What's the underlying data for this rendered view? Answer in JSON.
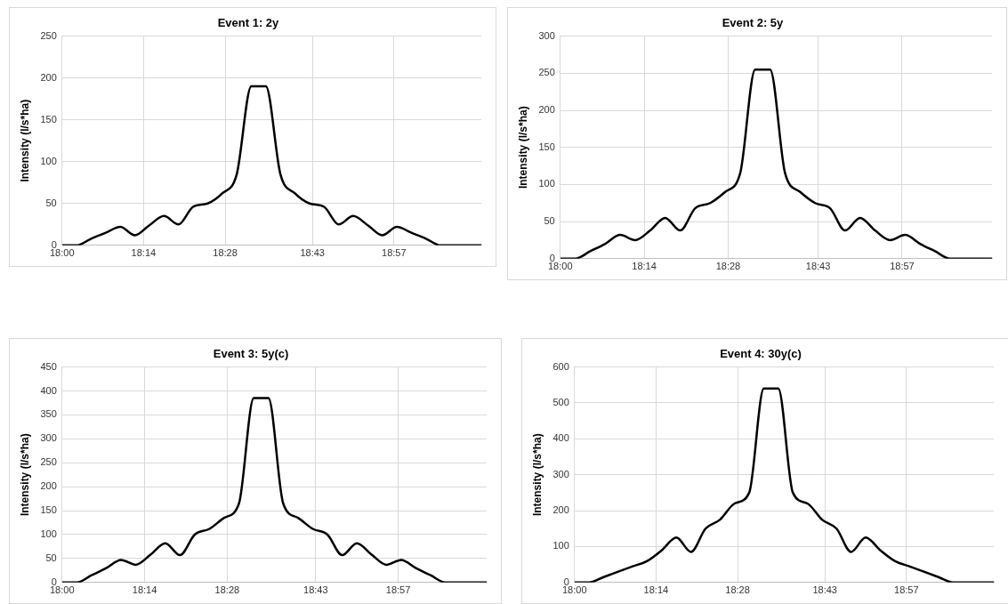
{
  "chart_data": [
    {
      "type": "line",
      "title": "Event 1: 2y",
      "ylabel": "Intensity (l/s*ha)",
      "grid": true,
      "legend": false,
      "marker": "none",
      "line_style": "solid",
      "xlim": [
        18,
        19.2
      ],
      "xticks": [
        {
          "value": 18,
          "label": "18:00"
        },
        {
          "value": 18.2333,
          "label": "18:14"
        },
        {
          "value": 18.4667,
          "label": "18:28"
        },
        {
          "value": 18.7167,
          "label": "18:43"
        },
        {
          "value": 18.95,
          "label": "18:57"
        }
      ],
      "ylim": [
        0,
        250
      ],
      "yticks": [
        0,
        50,
        100,
        150,
        200,
        250
      ],
      "series": [
        {
          "color": "#000000",
          "x": [
            18,
            18.0417,
            18.0833,
            18.125,
            18.1667,
            18.2083,
            18.25,
            18.2917,
            18.3333,
            18.375,
            18.4167,
            18.4583,
            18.5,
            18.5417,
            18.5833,
            18.625,
            18.6667,
            18.7083,
            18.75,
            18.7917,
            18.8333,
            18.875,
            18.9167,
            18.9583,
            19,
            19.0417,
            19.0833,
            19.125,
            19.1667,
            19.2
          ],
          "values": [
            0,
            0,
            8,
            15,
            22,
            12,
            24,
            35,
            25,
            46,
            50,
            62,
            85,
            190,
            190,
            85,
            62,
            50,
            46,
            25,
            35,
            24,
            12,
            22,
            15,
            8,
            0,
            0,
            0,
            0
          ]
        }
      ]
    },
    {
      "type": "line",
      "title": "Event 2: 5y",
      "ylabel": "Intensity (l/s*ha)",
      "grid": true,
      "legend": false,
      "marker": "none",
      "line_style": "solid",
      "xlim": [
        18,
        19.2
      ],
      "xticks": [
        {
          "value": 18,
          "label": "18:00"
        },
        {
          "value": 18.2333,
          "label": "18:14"
        },
        {
          "value": 18.4667,
          "label": "18:28"
        },
        {
          "value": 18.7167,
          "label": "18:43"
        },
        {
          "value": 18.95,
          "label": "18:57"
        }
      ],
      "ylim": [
        0,
        300
      ],
      "yticks": [
        0,
        50,
        100,
        150,
        200,
        250,
        300
      ],
      "series": [
        {
          "color": "#000000",
          "x": [
            18,
            18.0417,
            18.0833,
            18.125,
            18.1667,
            18.2083,
            18.25,
            18.2917,
            18.3333,
            18.375,
            18.4167,
            18.4583,
            18.5,
            18.5417,
            18.5833,
            18.625,
            18.6667,
            18.7083,
            18.75,
            18.7917,
            18.8333,
            18.875,
            18.9167,
            18.9583,
            19,
            19.0417,
            19.0833,
            19.125,
            19.1667,
            19.2
          ],
          "values": [
            0,
            0,
            10,
            20,
            32,
            25,
            38,
            55,
            38,
            68,
            75,
            90,
            115,
            255,
            255,
            115,
            90,
            75,
            68,
            38,
            55,
            38,
            25,
            32,
            20,
            10,
            0,
            0,
            0,
            0
          ]
        }
      ]
    },
    {
      "type": "line",
      "title": "Event 3: 5y(c)",
      "ylabel": "Intensity (l/s*ha)",
      "grid": true,
      "legend": false,
      "marker": "none",
      "line_style": "solid",
      "xlim": [
        18,
        19.2
      ],
      "xticks": [
        {
          "value": 18,
          "label": "18:00"
        },
        {
          "value": 18.2333,
          "label": "18:14"
        },
        {
          "value": 18.4667,
          "label": "18:28"
        },
        {
          "value": 18.7167,
          "label": "18:43"
        },
        {
          "value": 18.95,
          "label": "18:57"
        }
      ],
      "ylim": [
        0,
        450
      ],
      "yticks": [
        0,
        50,
        100,
        150,
        200,
        250,
        300,
        350,
        400,
        450
      ],
      "series": [
        {
          "color": "#000000",
          "x": [
            18,
            18.0417,
            18.0833,
            18.125,
            18.1667,
            18.2083,
            18.25,
            18.2917,
            18.3333,
            18.375,
            18.4167,
            18.4583,
            18.5,
            18.5417,
            18.5833,
            18.625,
            18.6667,
            18.7083,
            18.75,
            18.7917,
            18.8333,
            18.875,
            18.9167,
            18.9583,
            19,
            19.0417,
            19.0833,
            19.125,
            19.1667,
            19.2
          ],
          "values": [
            0,
            0,
            15,
            30,
            47,
            37,
            58,
            82,
            57,
            100,
            112,
            135,
            165,
            385,
            385,
            165,
            135,
            112,
            100,
            57,
            82,
            58,
            37,
            47,
            30,
            15,
            0,
            0,
            0,
            0
          ]
        }
      ]
    },
    {
      "type": "line",
      "title": "Event 4: 30y(c)",
      "ylabel": "Intensity (l/s*ha)",
      "grid": true,
      "legend": false,
      "marker": "none",
      "line_style": "solid",
      "xlim": [
        18,
        19.2
      ],
      "xticks": [
        {
          "value": 18,
          "label": "18:00"
        },
        {
          "value": 18.2333,
          "label": "18:14"
        },
        {
          "value": 18.4667,
          "label": "18:28"
        },
        {
          "value": 18.7167,
          "label": "18:43"
        },
        {
          "value": 18.95,
          "label": "18:57"
        }
      ],
      "ylim": [
        0,
        600
      ],
      "yticks": [
        0,
        100,
        200,
        300,
        400,
        500,
        600
      ],
      "series": [
        {
          "color": "#000000",
          "x": [
            18,
            18.0417,
            18.0833,
            18.125,
            18.1667,
            18.2083,
            18.25,
            18.2917,
            18.3333,
            18.375,
            18.4167,
            18.4583,
            18.5,
            18.5417,
            18.5833,
            18.625,
            18.6667,
            18.7083,
            18.75,
            18.7917,
            18.8333,
            18.875,
            18.9167,
            18.9583,
            19,
            19.0417,
            19.0833,
            19.125,
            19.1667,
            19.2
          ],
          "values": [
            0,
            0,
            15,
            30,
            45,
            60,
            90,
            125,
            85,
            150,
            175,
            220,
            250,
            540,
            540,
            250,
            220,
            175,
            150,
            85,
            125,
            90,
            60,
            45,
            30,
            15,
            0,
            0,
            0,
            0
          ]
        }
      ]
    }
  ]
}
